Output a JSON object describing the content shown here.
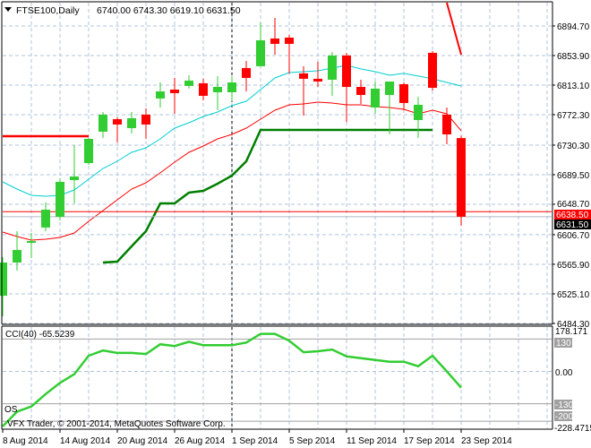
{
  "header": {
    "symbol_timeframe": "FTSE100,Daily",
    "ohlc_readout": "6740.00 6743.30 6619.10 6631.50"
  },
  "indicator": {
    "label": "CCI(40) -65.5239"
  },
  "copyright": "VFX Trader, © 2001-2014, MetaQuotes Software Corp.",
  "overlay_text": "OS",
  "price_axis": {
    "ticks": [
      "6894.70",
      "6853.90",
      "6813.10",
      "6772.30",
      "6730.30",
      "6689.50",
      "6648.70",
      "6606.70",
      "6565.90",
      "6525.10",
      "6484.30"
    ],
    "bid_label": "6638.50",
    "last_label": "6631.50"
  },
  "cci_axis": {
    "max_label": "178.171",
    "level_high": "130",
    "zero_label": "0.00",
    "level_low": "-130",
    "level_extra": "-200",
    "min_label": "-228.4715"
  },
  "date_axis": [
    "8 Aug 2014",
    "14 Aug 2014",
    "20 Aug 2014",
    "26 Aug 2014",
    "1 Sep 2014",
    "5 Sep 2014",
    "11 Sep 2014",
    "17 Sep 2014",
    "23 Sep 2014"
  ],
  "colors": {
    "bull": "#32CD32",
    "bear": "#FF0000",
    "ma_fast": "#00CED1",
    "ma_slow": "#FF0000",
    "trail": "#007F00",
    "cci": "#32CD32",
    "grid": "#B0C4DE"
  },
  "chart_data": [
    {
      "type": "candlestick",
      "title": "FTSE100,Daily",
      "ylim": [
        6483.0,
        6930.5
      ],
      "grid": true,
      "ohlc": [
        [
          6522.5,
          6575.7,
          6494.1,
          6568.3
        ],
        [
          6568.3,
          6611.6,
          6557.2,
          6585.6
        ],
        [
          6595.5,
          6609.1,
          6574.5,
          6598.0
        ],
        [
          6616.6,
          6651.2,
          6611.6,
          6641.2
        ],
        [
          6631.4,
          6684.5,
          6626.4,
          6679.6
        ],
        [
          6682.0,
          6730.3,
          6649.9,
          6687.0
        ],
        [
          6705.5,
          6740.2,
          6703.0,
          6738.9
        ],
        [
          6748.8,
          6776.0,
          6740.2,
          6772.3
        ],
        [
          6766.1,
          6768.6,
          6734.0,
          6758.7
        ],
        [
          6753.7,
          6776.0,
          6746.3,
          6767.4
        ],
        [
          6772.3,
          6781.0,
          6738.9,
          6758.7
        ],
        [
          6794.6,
          6816.8,
          6782.2,
          6804.4
        ],
        [
          6806.9,
          6823.0,
          6773.5,
          6802.0
        ],
        [
          6811.9,
          6826.7,
          6808.2,
          6819.3
        ],
        [
          6815.6,
          6821.8,
          6792.1,
          6798.3
        ],
        [
          6803.2,
          6825.5,
          6778.5,
          6810.6
        ],
        [
          6803.2,
          6825.5,
          6790.8,
          6816.8
        ],
        [
          6836.6,
          6846.5,
          6804.4,
          6823.0
        ],
        [
          6839.1,
          6899.6,
          6839.1,
          6874.9
        ],
        [
          6877.4,
          6905.8,
          6855.1,
          6870.0
        ],
        [
          6878.6,
          6882.3,
          6829.2,
          6870.0
        ],
        [
          6829.2,
          6839.1,
          6771.1,
          6821.8
        ],
        [
          6821.8,
          6845.2,
          6810.6,
          6818.0
        ],
        [
          6820.5,
          6858.8,
          6798.3,
          6853.9
        ],
        [
          6853.9,
          6857.6,
          6762.4,
          6810.6
        ],
        [
          6810.6,
          6820.5,
          6787.1,
          6799.5
        ],
        [
          6782.2,
          6818.0,
          6773.5,
          6808.2
        ],
        [
          6799.5,
          6818.0,
          6745.1,
          6818.0
        ],
        [
          6814.3,
          6816.8,
          6778.5,
          6788.4
        ],
        [
          6764.9,
          6797.0,
          6740.2,
          6785.9
        ],
        [
          6857.6,
          6860.1,
          6805.7,
          6809.4
        ],
        [
          6772.3,
          6782.2,
          6731.5,
          6745.1
        ],
        [
          6740.0,
          6743.3,
          6619.1,
          6631.5
        ]
      ],
      "ma_fast": [
        6679.6,
        6669.7,
        6661.0,
        6659.8,
        6661.0,
        6668.4,
        6683.3,
        6698.1,
        6708.0,
        6720.4,
        6726.5,
        6738.9,
        6753.7,
        6761.2,
        6769.8,
        6776.0,
        6784.7,
        6790.8,
        6806.9,
        6823.0,
        6830.4,
        6831.6,
        6832.9,
        6836.6,
        6840.3,
        6835.4,
        6831.6,
        6826.7,
        6829.2,
        6825.5,
        6821.8,
        6816.8,
        6811.9
      ],
      "ma_slow": [
        6610.3,
        6604.2,
        6599.2,
        6600.4,
        6602.9,
        6609.1,
        6625.2,
        6640.0,
        6654.8,
        6669.7,
        6678.3,
        6692.0,
        6706.8,
        6720.4,
        6729.0,
        6738.9,
        6745.1,
        6753.7,
        6766.1,
        6778.5,
        6785.9,
        6787.1,
        6789.6,
        6788.4,
        6785.9,
        6785.9,
        6783.4,
        6782.2,
        6779.7,
        6773.5,
        6778.5,
        6773.5,
        6750.1
      ],
      "trail_line": {
        "start_bar": 7,
        "values": [
          6568.3,
          6569.5,
          6590.7,
          6611.6,
          6649.9,
          6649.9,
          6664.7,
          6667.2,
          6677.1,
          6688.2,
          6708.0,
          6751.3,
          6751.3,
          6751.3,
          6751.3,
          6751.3,
          6751.3,
          6751.3,
          6751.3,
          6751.3,
          6751.3,
          6751.3,
          6751.3,
          6751.3
        ]
      },
      "red_level_line": {
        "start_bar": 0,
        "values": [
          6742.6,
          6742.6,
          6742.6,
          6742.6,
          6742.6,
          6742.6,
          6742.6
        ]
      },
      "red_steep_line": {
        "start_bar": 31,
        "values": [
          6926.8,
          6855.1
        ]
      },
      "bid_price": 6638.5,
      "last_price": 6631.5,
      "period_separator_bar": 16
    },
    {
      "type": "line",
      "title": "CCI(40) -65.5239",
      "ylim": [
        -228.4715,
        178.171
      ],
      "levels": [
        130,
        0,
        -130,
        -200
      ],
      "values": [
        -221,
        -162,
        -141,
        -91,
        -46,
        -11,
        63,
        84,
        74,
        74,
        70,
        109,
        102,
        119,
        105,
        105,
        105,
        116,
        151,
        151,
        123,
        77,
        81,
        88,
        60,
        53,
        46,
        39,
        39,
        21,
        63,
        0,
        -65.5239
      ]
    }
  ]
}
